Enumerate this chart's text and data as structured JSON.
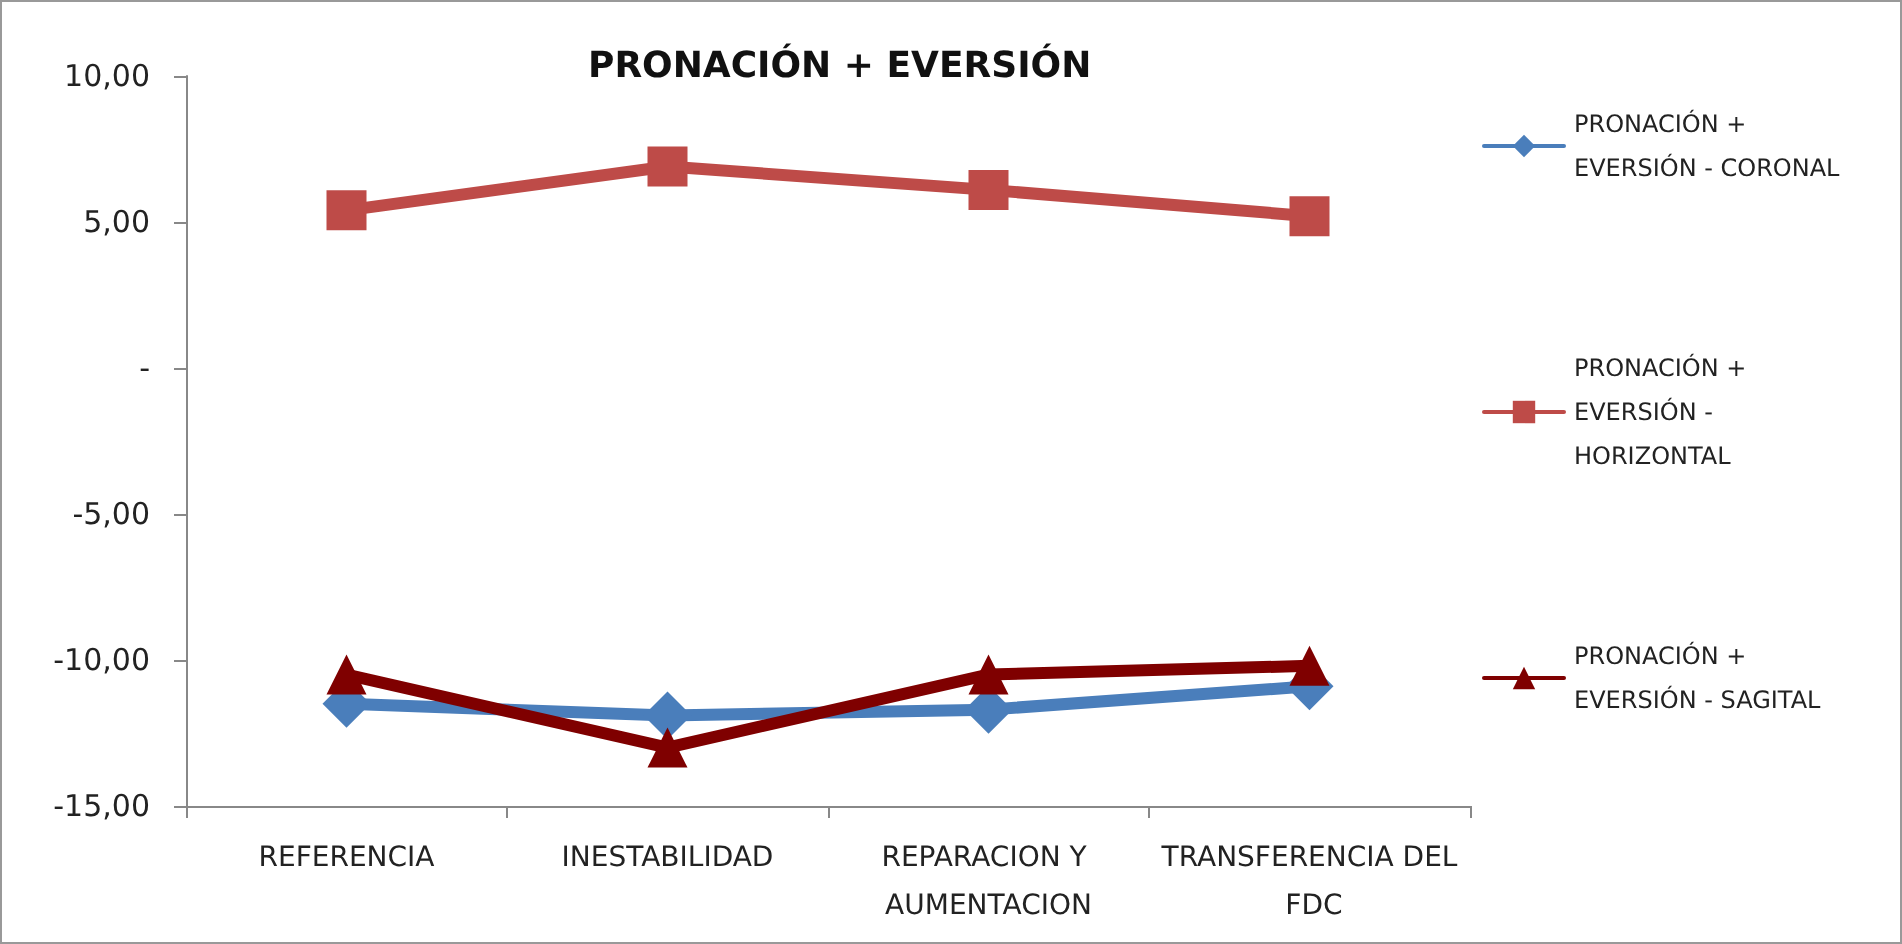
{
  "chart_data": {
    "type": "line",
    "title": "PRONACIÓN + EVERSIÓN",
    "categories": [
      "REFERENCIA",
      "INESTABILIDAD",
      "REPARACION Y AUMENTACION",
      "TRANSFERENCIA DEL FDC"
    ],
    "series": [
      {
        "name": "PRONACIÓN + EVERSIÓN - CORONAL",
        "color": "#4a7ebb",
        "marker": "diamond",
        "values": [
          -11.5,
          -11.9,
          -11.7,
          -10.9
        ]
      },
      {
        "name": "PRONACIÓN + EVERSIÓN - HORIZONTAL",
        "color": "#be4b48",
        "marker": "square",
        "values": [
          5.4,
          6.9,
          6.1,
          5.2
        ]
      },
      {
        "name": "PRONACIÓN + EVERSIÓN - SAGITAL",
        "color": "#7f0000",
        "marker": "triangle",
        "values": [
          -10.5,
          -13.0,
          -10.5,
          -10.2
        ]
      }
    ],
    "ylim": [
      -15,
      10
    ],
    "yticks": [
      {
        "value": -15,
        "label": "-15,00"
      },
      {
        "value": -10,
        "label": "-10,00"
      },
      {
        "value": -5,
        "label": "-5,00"
      },
      {
        "value": 0,
        "label": "-"
      },
      {
        "value": 5,
        "label": "5,00"
      },
      {
        "value": 10,
        "label": "10,00"
      }
    ],
    "grid": false,
    "legend": "right",
    "line_style": "solid"
  }
}
